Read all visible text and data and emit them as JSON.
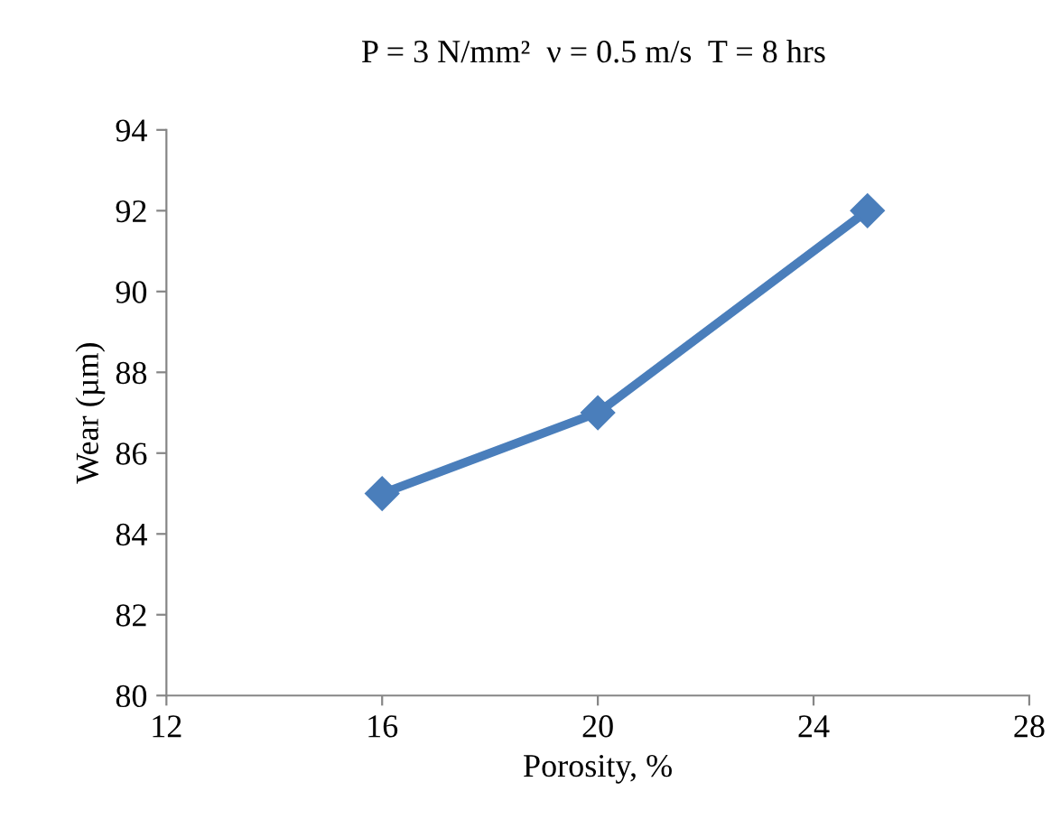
{
  "chart_data": {
    "type": "line",
    "title": "P = 3 N/mm²  ν = 0.5 m/s  T = 8 hrs",
    "xlabel": "Porosity, %",
    "ylabel": "Wear (µm)",
    "x": [
      16,
      20,
      25
    ],
    "series": [
      {
        "color": "#4a7ebb",
        "values": [
          85,
          87,
          92
        ]
      }
    ],
    "xlim": [
      12,
      28
    ],
    "xticks": [
      12,
      16,
      20,
      24,
      28
    ],
    "ylim": [
      80,
      94
    ],
    "yticks": [
      80,
      82,
      84,
      86,
      88,
      90,
      92,
      94
    ],
    "grid": false,
    "legend": false,
    "marker": "diamond",
    "line_style": "solid"
  }
}
